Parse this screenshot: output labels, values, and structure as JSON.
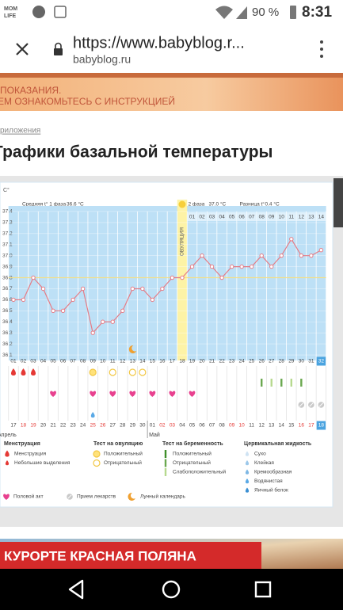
{
  "status_bar": {
    "app_line1": "MOM",
    "app_line2": "LIFE",
    "battery": "90 %",
    "time": "8:31"
  },
  "browser": {
    "url": "https://www.babyblog.r...",
    "domain": "babyblog.ru"
  },
  "banner": {
    "line1": "ПОКАЗАНИЯ.",
    "line2": "ЕМ ОЗНАКОМЬТЕСЬ С ИНСТРУКЦИЕЙ"
  },
  "breadcrumb": "риложения",
  "title": "Графики базальной температуры",
  "chart_data": {
    "type": "line",
    "y_unit": "С°",
    "phase1_label": "Средняя t° 1 фаза",
    "phase1_value": "36.6 °C",
    "phase2_label": "2 фаза",
    "phase2_value": "37.0 °C",
    "diff_label": "Разница t°",
    "diff_value": "0.4 °C",
    "ovulation_label": "ОВУЛЯЦИЯ",
    "categories": [
      "01",
      "02",
      "03",
      "04",
      "05",
      "06",
      "07",
      "08",
      "09",
      "10",
      "11",
      "12",
      "13",
      "14",
      "15",
      "16",
      "17",
      "18",
      "19",
      "20",
      "21",
      "22",
      "23",
      "24",
      "25",
      "26",
      "27",
      "28",
      "29",
      "30",
      "31",
      "32"
    ],
    "phase2_days": [
      "01",
      "02",
      "03",
      "04",
      "05",
      "06",
      "07",
      "08",
      "09",
      "10",
      "11",
      "12",
      "13",
      "14"
    ],
    "dates": [
      "17",
      "18",
      "19",
      "20",
      "21",
      "22",
      "23",
      "24",
      "25",
      "26",
      "27",
      "28",
      "29",
      "30",
      "01",
      "02",
      "03",
      "04",
      "05",
      "06",
      "07",
      "08",
      "09",
      "10",
      "11",
      "12",
      "13",
      "14",
      "15",
      "16",
      "17",
      "18"
    ],
    "weekend_dates": [
      1,
      2,
      8,
      9,
      15,
      16,
      22,
      23,
      29,
      30
    ],
    "weekend_color": "#e53935",
    "months": [
      "Апрель",
      "Май"
    ],
    "values": [
      36.6,
      36.6,
      36.8,
      36.7,
      36.5,
      36.5,
      36.6,
      36.7,
      36.3,
      36.4,
      36.4,
      36.5,
      36.7,
      36.7,
      36.6,
      36.7,
      36.8,
      36.8,
      36.9,
      37.0,
      36.9,
      36.8,
      36.9,
      36.9,
      36.9,
      37.0,
      36.9,
      37.0,
      37.15,
      37.0,
      37.0,
      37.05
    ],
    "ylim": [
      36.05,
      37.45
    ],
    "yticks": [
      37.4,
      37.3,
      37.2,
      37.1,
      {
        "value": 37,
        "label": "37.0"
      },
      36.9,
      36.8,
      36.7,
      36.6,
      36.5,
      36.4,
      36.3,
      36.2,
      36.1
    ],
    "coverline": 36.8,
    "ovulation_day": 18,
    "today_day": 32,
    "line_color": "#e57c86",
    "fill_color": "#bde0f6",
    "ovulation_color": "#fdf3a6",
    "today_color": "#4aa3df",
    "menstruation_days": [
      1,
      2,
      3
    ],
    "ovulation_test_positive_days": [
      9
    ],
    "ovulation_test_negative_days": [
      11,
      13,
      14
    ],
    "pregnancy_test_days": [
      26,
      27,
      28,
      29,
      30
    ],
    "pregnancy_test_colors": [
      "#6aa84f",
      "#b6d98f",
      "#6aa84f",
      "#b6d98f",
      "#6aa84f"
    ],
    "sex_days": [
      5,
      9,
      11,
      13,
      15,
      17,
      19
    ],
    "medicine_days": [
      30,
      31,
      32
    ],
    "fluid_days": [
      9
    ],
    "moon_days": [
      13
    ]
  },
  "legend": {
    "groups": [
      {
        "title": "Менструация",
        "items": [
          "Менструация",
          "Небольшие выделения"
        ]
      },
      {
        "title": "Тест на овуляцию",
        "items": [
          "Положительный",
          "Отрицательный"
        ]
      },
      {
        "title": "Тест на беременность",
        "items": [
          "Положительный",
          "Отрицательный",
          "Слабоположительный"
        ]
      },
      {
        "title": "Цервикальная жидкость",
        "items": [
          "Сухо",
          "Клейкая",
          "Кремообразная",
          "Водянистая",
          "Яичный белок"
        ]
      }
    ],
    "extra": [
      "Половой акт",
      "Прием лекарств",
      "Лунный календарь"
    ]
  },
  "ad": "КУРОРТЕ КРАСНАЯ ПОЛЯНА"
}
